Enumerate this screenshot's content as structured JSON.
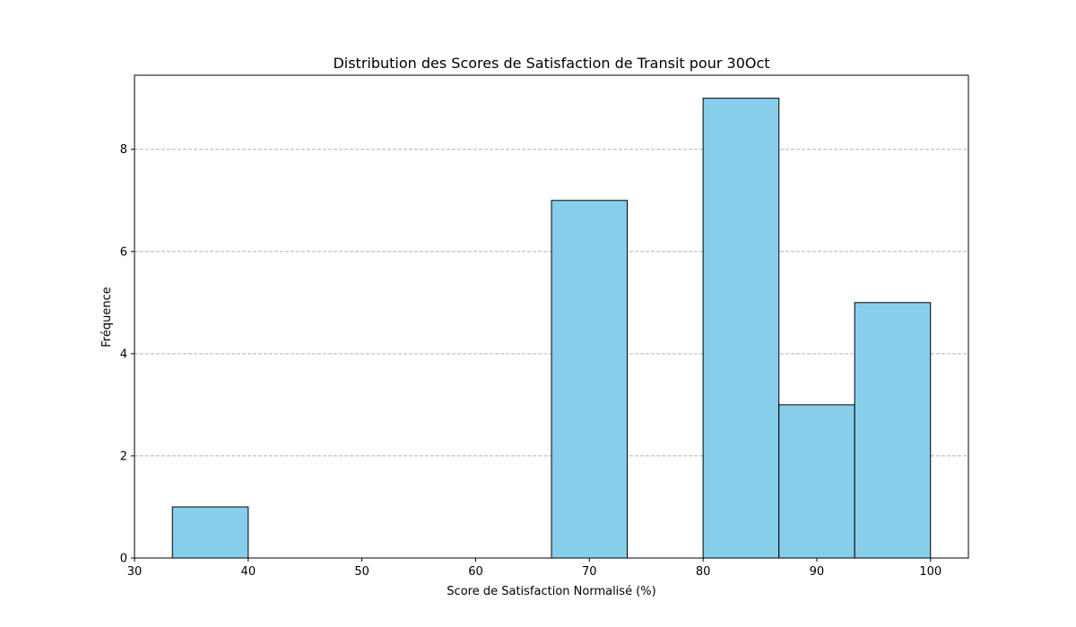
{
  "chart_data": {
    "type": "bar",
    "title": "Distribution des Scores de Satisfaction de Transit pour 30Oct",
    "xlabel": "Score de Satisfaction Normalisé (%)",
    "ylabel": "Fréquence",
    "xlim": [
      30,
      103.33
    ],
    "ylim": [
      0,
      9.45
    ],
    "xticks": [
      30,
      40,
      50,
      60,
      70,
      80,
      90,
      100
    ],
    "yticks": [
      0,
      2,
      4,
      6,
      8
    ],
    "grid": "y-dashed",
    "bins": [
      {
        "x0": 33.33,
        "x1": 40.0,
        "count": 1
      },
      {
        "x0": 40.0,
        "x1": 46.67,
        "count": 0
      },
      {
        "x0": 46.67,
        "x1": 53.33,
        "count": 0
      },
      {
        "x0": 53.33,
        "x1": 60.0,
        "count": 0
      },
      {
        "x0": 60.0,
        "x1": 66.67,
        "count": 0
      },
      {
        "x0": 66.67,
        "x1": 73.33,
        "count": 7
      },
      {
        "x0": 73.33,
        "x1": 80.0,
        "count": 0
      },
      {
        "x0": 80.0,
        "x1": 86.67,
        "count": 9
      },
      {
        "x0": 86.67,
        "x1": 93.33,
        "count": 3
      },
      {
        "x0": 93.33,
        "x1": 100.0,
        "count": 5
      }
    ],
    "colors": {
      "bar_fill": "#87ceeb",
      "bar_edge": "#000000",
      "grid": "#b0b0b0"
    }
  }
}
